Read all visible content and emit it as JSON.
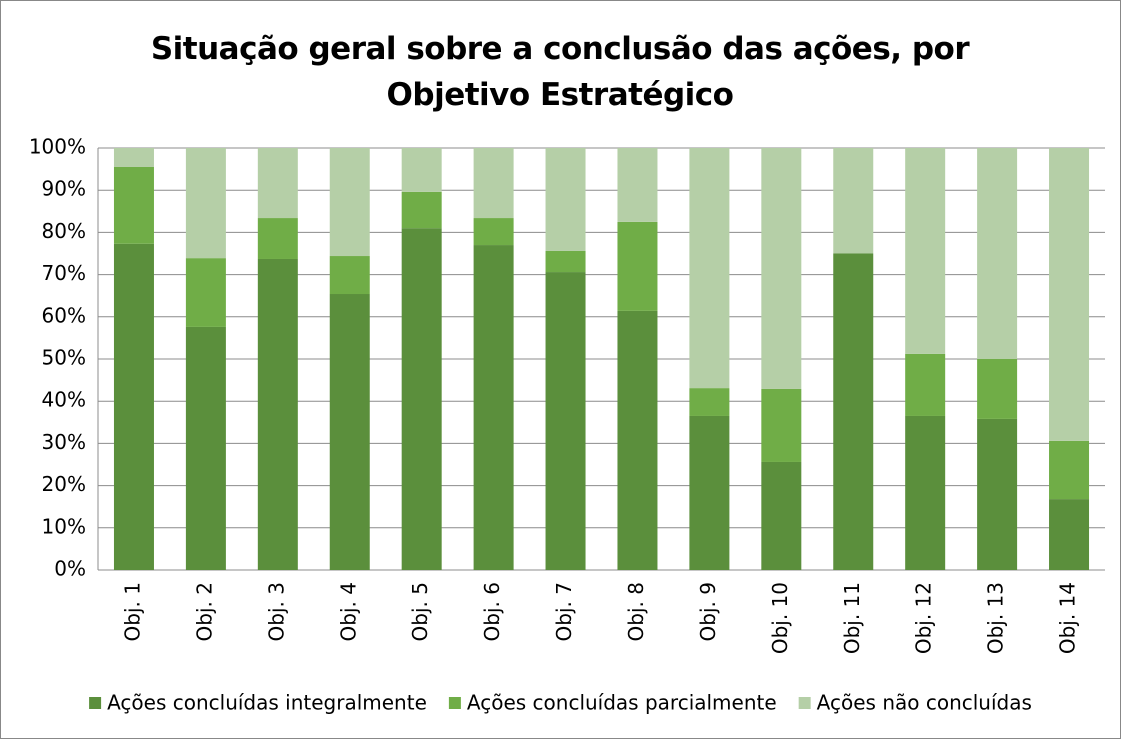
{
  "chart_data": {
    "type": "stacked_bar",
    "title": "Situação geral sobre a conclusão das ações, por Objetivo Estratégico",
    "categories": [
      "Obj. 1",
      "Obj. 2",
      "Obj. 3",
      "Obj. 4",
      "Obj. 5",
      "Obj. 6",
      "Obj. 7",
      "Obj. 8",
      "Obj. 9",
      "Obj. 10",
      "Obj. 11",
      "Obj. 12",
      "Obj. 13",
      "Obj. 14"
    ],
    "series": [
      {
        "name": "Ações concluídas integralmente",
        "color": "#5b8f3c",
        "values": [
          77.3,
          57.6,
          73.7,
          65.4,
          81.0,
          77.0,
          70.6,
          61.4,
          36.5,
          25.6,
          75.0,
          36.5,
          35.8,
          16.8
        ]
      },
      {
        "name": "Ações concluídas parcialmente",
        "color": "#70ad47",
        "values": [
          18.2,
          16.3,
          9.7,
          9.0,
          8.6,
          6.4,
          5.0,
          21.1,
          6.6,
          17.3,
          0,
          14.7,
          14.2,
          13.8
        ]
      },
      {
        "name": "Ações não concluídas",
        "color": "#b5cfa7",
        "values": [
          4.5,
          26.1,
          16.6,
          25.6,
          10.4,
          16.6,
          24.4,
          17.5,
          56.9,
          57.1,
          25.0,
          48.8,
          50.0,
          69.4
        ]
      }
    ],
    "ylim": [
      0,
      100
    ],
    "yticks": [
      {
        "value": 0,
        "label": "0%"
      },
      {
        "value": 10,
        "label": "10%"
      },
      {
        "value": 20,
        "label": "20%"
      },
      {
        "value": 30,
        "label": "30%"
      },
      {
        "value": 40,
        "label": "40%"
      },
      {
        "value": 50,
        "label": "50%"
      },
      {
        "value": 60,
        "label": "60%"
      },
      {
        "value": 70,
        "label": "70%"
      },
      {
        "value": 80,
        "label": "80%"
      },
      {
        "value": 90,
        "label": "90%"
      },
      {
        "value": 100,
        "label": "100%"
      }
    ],
    "grid": true,
    "legend": "bottom"
  }
}
